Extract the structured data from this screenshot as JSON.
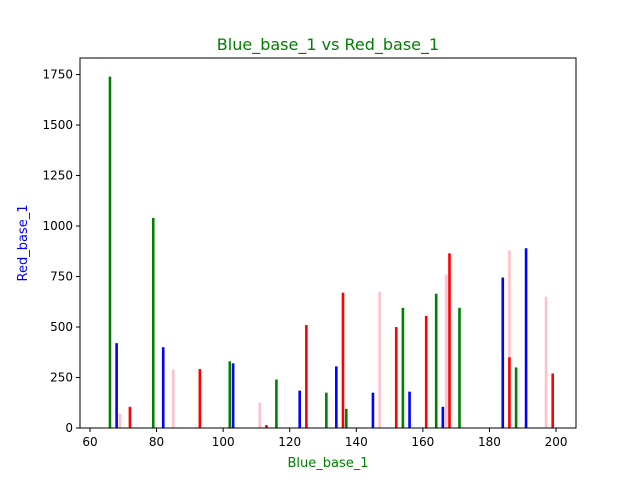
{
  "chart_data": {
    "type": "bar",
    "title": "Blue_base_1 vs Red_base_1",
    "xlabel": "Blue_base_1",
    "ylabel": "Red_base_1",
    "xlim": [
      57,
      206
    ],
    "ylim": [
      0,
      1832
    ],
    "xticks": [
      60,
      80,
      100,
      120,
      140,
      160,
      180,
      200
    ],
    "yticks": [
      0,
      250,
      500,
      750,
      1000,
      1250,
      1500,
      1750
    ],
    "title_color": "#008000",
    "xlabel_color": "#008000",
    "ylabel_color": "#0000ff",
    "grid": false,
    "bars": [
      {
        "x": 66,
        "value": 1740,
        "color": "#008000"
      },
      {
        "x": 68,
        "value": 420,
        "color": "#0000ff"
      },
      {
        "x": 69,
        "value": 70,
        "color": "#ffc0cb"
      },
      {
        "x": 72,
        "value": 105,
        "color": "#ff0000"
      },
      {
        "x": 79,
        "value": 1040,
        "color": "#008000"
      },
      {
        "x": 82,
        "value": 400,
        "color": "#0000ff"
      },
      {
        "x": 85,
        "value": 290,
        "color": "#ffc0cb"
      },
      {
        "x": 93,
        "value": 292,
        "color": "#ff0000"
      },
      {
        "x": 102,
        "value": 330,
        "color": "#008000"
      },
      {
        "x": 103,
        "value": 320,
        "color": "#0000ff"
      },
      {
        "x": 111,
        "value": 125,
        "color": "#ffc0cb"
      },
      {
        "x": 113,
        "value": 15,
        "color": "#ff0000"
      },
      {
        "x": 116,
        "value": 240,
        "color": "#008000"
      },
      {
        "x": 123,
        "value": 185,
        "color": "#0000ff"
      },
      {
        "x": 125,
        "value": 510,
        "color": "#ff0000"
      },
      {
        "x": 131,
        "value": 175,
        "color": "#008000"
      },
      {
        "x": 134,
        "value": 305,
        "color": "#0000ff"
      },
      {
        "x": 136,
        "value": 670,
        "color": "#ff0000"
      },
      {
        "x": 137,
        "value": 95,
        "color": "#008000"
      },
      {
        "x": 145,
        "value": 175,
        "color": "#0000ff"
      },
      {
        "x": 147,
        "value": 675,
        "color": "#ffc0cb"
      },
      {
        "x": 152,
        "value": 500,
        "color": "#ff0000"
      },
      {
        "x": 154,
        "value": 595,
        "color": "#008000"
      },
      {
        "x": 156,
        "value": 180,
        "color": "#0000ff"
      },
      {
        "x": 161,
        "value": 555,
        "color": "#ff0000"
      },
      {
        "x": 164,
        "value": 665,
        "color": "#008000"
      },
      {
        "x": 166,
        "value": 105,
        "color": "#0000ff"
      },
      {
        "x": 167,
        "value": 760,
        "color": "#ffc0cb"
      },
      {
        "x": 168,
        "value": 865,
        "color": "#ff0000"
      },
      {
        "x": 171,
        "value": 595,
        "color": "#008000"
      },
      {
        "x": 184,
        "value": 745,
        "color": "#0000ff"
      },
      {
        "x": 186,
        "value": 880,
        "color": "#ffc0cb"
      },
      {
        "x": 186,
        "value": 350,
        "color": "#ff0000"
      },
      {
        "x": 188,
        "value": 300,
        "color": "#008000"
      },
      {
        "x": 191,
        "value": 890,
        "color": "#0000ff"
      },
      {
        "x": 197,
        "value": 650,
        "color": "#ffc0cb"
      },
      {
        "x": 199,
        "value": 270,
        "color": "#ff0000"
      }
    ]
  }
}
